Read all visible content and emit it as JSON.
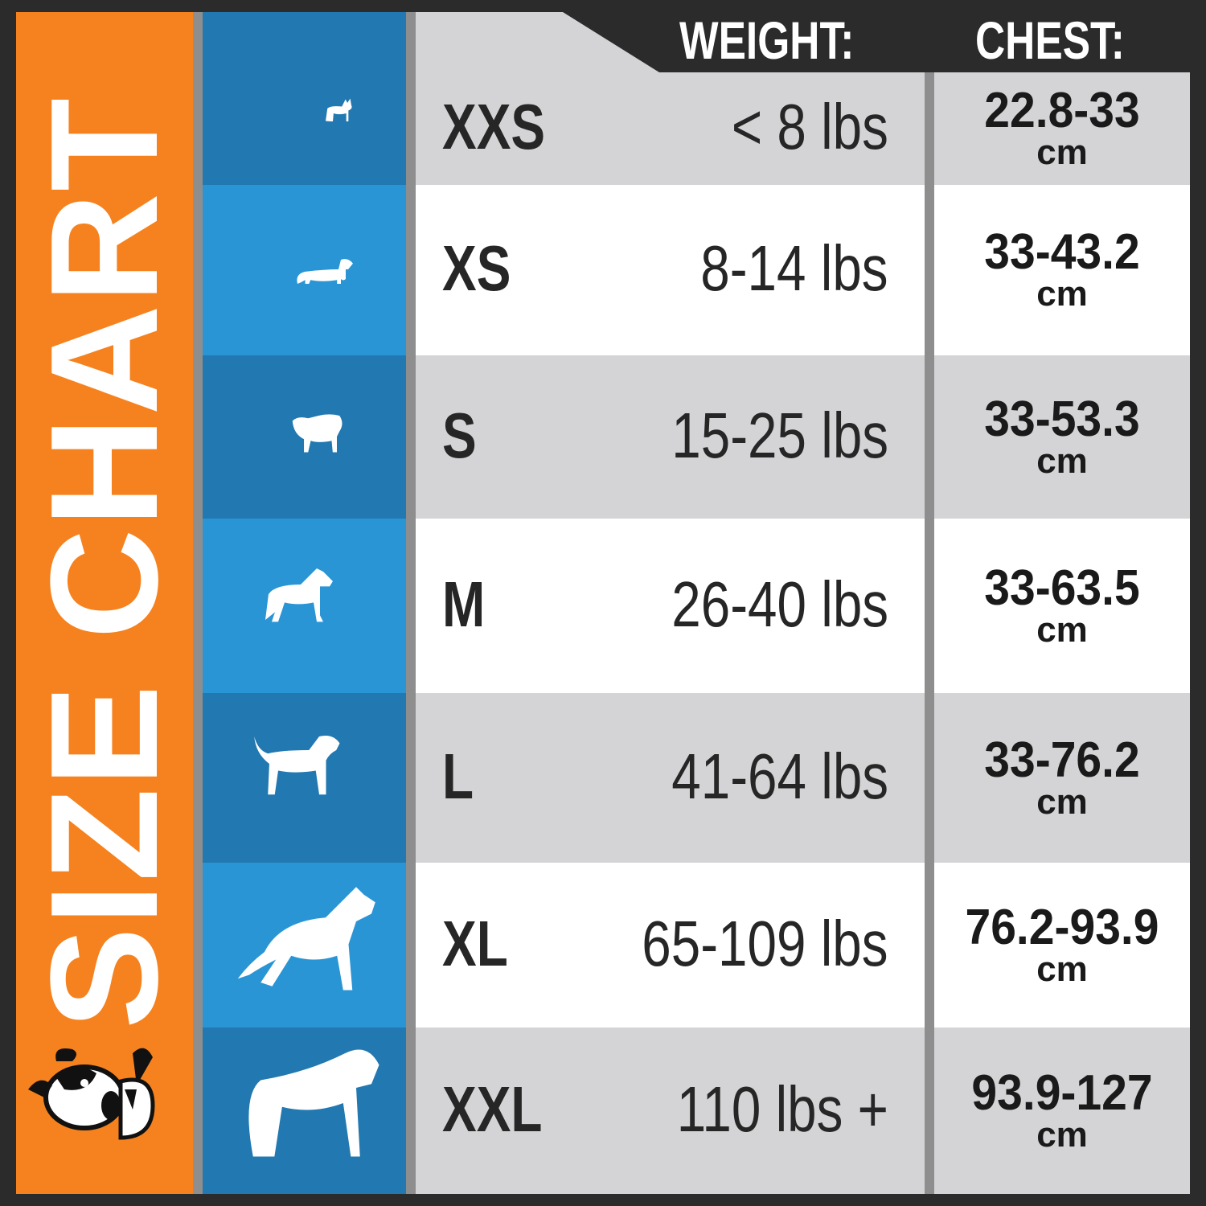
{
  "title": "SIZE CHART",
  "headers": {
    "weight": "WEIGHT:",
    "chest": "CHEST:"
  },
  "colors": {
    "orange": "#f5821f",
    "blue_dark": "#2278b0",
    "blue_light": "#2a95d5",
    "row_gray": "#d4d4d6",
    "row_white": "#ffffff",
    "frame": "#2b2b2b"
  },
  "logo_icon": "cartoon-dog-logo",
  "rows": [
    {
      "size": "XXS",
      "weight": "< 8 lbs",
      "chest": "22.8-33",
      "unit": "cm",
      "icon": "chihuahua-silhouette"
    },
    {
      "size": "XS",
      "weight": "8-14 lbs",
      "chest": "33-43.2",
      "unit": "cm",
      "icon": "dachshund-silhouette"
    },
    {
      "size": "S",
      "weight": "15-25 lbs",
      "chest": "33-53.3",
      "unit": "cm",
      "icon": "pug-silhouette"
    },
    {
      "size": "M",
      "weight": "26-40 lbs",
      "chest": "33-63.5",
      "unit": "cm",
      "icon": "schnauzer-silhouette"
    },
    {
      "size": "L",
      "weight": "41-64 lbs",
      "chest": "33-76.2",
      "unit": "cm",
      "icon": "spaniel-silhouette"
    },
    {
      "size": "XL",
      "weight": "65-109 lbs",
      "chest": "76.2-93.9",
      "unit": "cm",
      "icon": "shepherd-silhouette"
    },
    {
      "size": "XXL",
      "weight": "110 lbs +",
      "chest": "93.9-127",
      "unit": "cm",
      "icon": "mastiff-silhouette"
    }
  ]
}
